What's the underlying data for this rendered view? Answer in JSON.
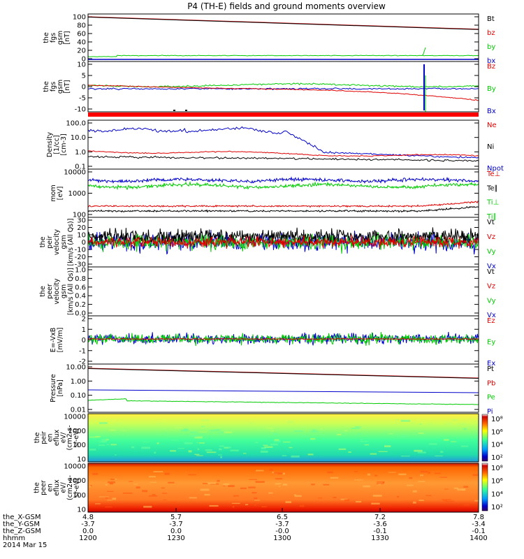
{
  "title": "P4 (TH-E) fields and ground moments overview",
  "colors": {
    "black": "#000000",
    "red": "#e00000",
    "green": "#00cc00",
    "blue": "#0000cc"
  },
  "panels": [
    {
      "ylabel": [
        "the",
        "fgs",
        "gsm",
        "[nT]"
      ],
      "ticks": [
        "100",
        "80",
        "60",
        "40",
        "20",
        "0"
      ],
      "legend": [
        {
          "text": "Bt",
          "color": "#000000"
        },
        {
          "text": "bz",
          "color": "#e00000"
        },
        {
          "text": "by",
          "color": "#00cc00"
        },
        {
          "text": "bx",
          "color": "#0000cc"
        }
      ]
    },
    {
      "ylabel": [
        "the",
        "fgs",
        "gsm",
        "[nT]"
      ],
      "ticks": [
        "10",
        "5",
        "0",
        "-5",
        "-10"
      ],
      "legend": [
        {
          "text": "Bz",
          "color": "#e00000"
        },
        {
          "text": "By",
          "color": "#00cc00"
        },
        {
          "text": "Bx",
          "color": "#0000cc"
        }
      ]
    },
    {
      "ylabel": [
        "Density",
        "[1/cc]",
        "[cm-3]"
      ],
      "ticks": [
        "100.0",
        "10.0",
        "1.0",
        "0.1"
      ],
      "legend": [
        {
          "text": "Ne",
          "color": "#e00000"
        },
        {
          "text": "Ni",
          "color": "#000000"
        },
        {
          "text": "Npot",
          "color": "#0000cc"
        }
      ]
    },
    {
      "ylabel": [
        "mom",
        "[eV]"
      ],
      "ticks": [
        "10000",
        "1000",
        "100"
      ],
      "legend": [
        {
          "text": "Te⊥",
          "color": "#e00000"
        },
        {
          "text": "Te∥",
          "color": "#000000"
        },
        {
          "text": "Ti⊥",
          "color": "#00cc00"
        },
        {
          "text": "Ti∥",
          "color": "#00cc00"
        }
      ]
    },
    {
      "ylabel": [
        "the",
        "peir",
        "velocity",
        "gsm",
        "[km/s (All Qs)]"
      ],
      "ticks": [
        "30",
        "20",
        "10",
        "0",
        "-10",
        "-20",
        "-30"
      ],
      "legend": [
        {
          "text": "Vt",
          "color": "#000000"
        },
        {
          "text": "Vz",
          "color": "#e00000"
        },
        {
          "text": "Vy",
          "color": "#00cc00"
        },
        {
          "text": "Vx",
          "color": "#0000cc"
        }
      ]
    },
    {
      "ylabel": [
        "the",
        "peer",
        "velocity",
        "gsm",
        "[km/s (All Qs)]"
      ],
      "ticks": [
        "1.0",
        "0.8",
        "0.6",
        "0.4",
        "0.2",
        "0.0"
      ],
      "legend": [
        {
          "text": "Vt",
          "color": "#000000"
        },
        {
          "text": "Vz",
          "color": "#e00000"
        },
        {
          "text": "Vy",
          "color": "#00cc00"
        },
        {
          "text": "Vx",
          "color": "#0000cc"
        }
      ]
    },
    {
      "ylabel": [
        "E=-VxB",
        "[mV/m]"
      ],
      "ticks": [
        "2",
        "1",
        "0",
        "-1",
        "-2"
      ],
      "legend": [
        {
          "text": "Ez",
          "color": "#e00000"
        },
        {
          "text": "Ey",
          "color": "#00cc00"
        },
        {
          "text": "Ex",
          "color": "#0000cc"
        }
      ]
    },
    {
      "ylabel": [
        "Pressure",
        "[nPa]"
      ],
      "ticks": [
        "10.00",
        "1.00",
        "0.10",
        "0.01"
      ],
      "legend": [
        {
          "text": "Pt",
          "color": "#000000"
        },
        {
          "text": "Pb",
          "color": "#e00000"
        },
        {
          "text": "Pe",
          "color": "#00cc00"
        },
        {
          "text": "Pi",
          "color": "#0000cc"
        }
      ]
    },
    {
      "ylabel": [
        "the",
        "peir",
        "en",
        "eflux",
        "eV/",
        "(cm2-s-",
        "sr-eV)"
      ],
      "ticks": [
        "10000",
        "1000",
        "100",
        "10"
      ],
      "colorbar": [
        "10⁸",
        "10⁶",
        "10⁴",
        "10²"
      ]
    },
    {
      "ylabel": [
        "the",
        "peer",
        "en",
        "eflux",
        "eV/",
        "(cm2-s-",
        "sr-eV)"
      ],
      "ticks": [
        "10000",
        "1000",
        "100",
        "10"
      ],
      "colorbar": [
        "10⁸",
        "10⁶",
        "10⁴",
        "10²"
      ]
    }
  ],
  "xaxis": {
    "rows": [
      {
        "label": "the_X-GSM",
        "values": [
          "4.8",
          "5.7",
          "6.5",
          "7.2",
          "7.8"
        ]
      },
      {
        "label": "the_Y-GSM",
        "values": [
          "-3.7",
          "-3.7",
          "-3.7",
          "-3.6",
          "-3.4"
        ]
      },
      {
        "label": "the_Z-GSM",
        "values": [
          "0.0",
          "0.0",
          "-0.0",
          "-0.1",
          "-0.1"
        ]
      },
      {
        "label": "hhmm",
        "values": [
          "1200",
          "1230",
          "1300",
          "1330",
          "1400"
        ]
      }
    ],
    "date": "2014 Mar 15"
  },
  "chart_data": {
    "type": "line",
    "title": "P4 (TH-E) fields and ground moments overview",
    "x": [
      "1200",
      "1230",
      "1300",
      "1330",
      "1400"
    ],
    "xlabel": "hhmm",
    "date": "2014 Mar 15",
    "panels": [
      {
        "name": "the fgs gsm [nT]",
        "ylim": [
          0,
          100
        ],
        "series": [
          {
            "name": "Bt",
            "values": [
              100,
              91,
              80,
              70,
              60
            ]
          },
          {
            "name": "bz",
            "values": [
              100,
              91,
              80,
              70,
              60
            ]
          },
          {
            "name": "by",
            "values": [
              0,
              2,
              2,
              2,
              2
            ]
          },
          {
            "name": "bx",
            "values": [
              -1,
              -1,
              -1,
              -1,
              -1
            ]
          }
        ]
      },
      {
        "name": "the fgs gsm [nT]",
        "ylim": [
          -10,
          10
        ],
        "series": [
          {
            "name": "Bz",
            "values": [
              0,
              0,
              -3,
              -5,
              -9
            ]
          },
          {
            "name": "By",
            "values": [
              0,
              0,
              -1,
              -1,
              0
            ]
          },
          {
            "name": "Bx",
            "values": [
              -1,
              -1,
              -1,
              -1,
              -1
            ]
          }
        ]
      },
      {
        "name": "Density [1/cc]",
        "log": true,
        "ylim": [
          0.1,
          100
        ],
        "series": [
          {
            "name": "Ne",
            "values": [
              1.5,
              1.5,
              1.2,
              1.0,
              0.6
            ]
          },
          {
            "name": "Ni",
            "values": [
              0.5,
              0.5,
              0.5,
              0.5,
              0.4
            ]
          },
          {
            "name": "Npot",
            "values": [
              25,
              20,
              2,
              1,
              0.7
            ]
          }
        ]
      },
      {
        "name": "mom [eV]",
        "log": true,
        "ylim": [
          100,
          10000
        ],
        "series": [
          {
            "name": "Te⊥",
            "values": [
              250,
              260,
              250,
              250,
              400
            ]
          },
          {
            "name": "Te∥",
            "values": [
              180,
              190,
              180,
              180,
              300
            ]
          },
          {
            "name": "Ti⊥",
            "values": [
              4000,
              4500,
              4000,
              4000,
              4000
            ]
          },
          {
            "name": "Ti∥",
            "values": [
              2500,
              3000,
              2800,
              2800,
              3000
            ]
          }
        ]
      },
      {
        "name": "the peir velocity gsm [km/s (All Qs)]",
        "ylim": [
          -30,
          30
        ],
        "series": [
          {
            "name": "Vt",
            "values": [
              8,
              10,
              9,
              10,
              9
            ]
          },
          {
            "name": "Vz",
            "values": [
              0,
              0,
              0,
              0,
              0
            ]
          },
          {
            "name": "Vy",
            "values": [
              0,
              0,
              0,
              0,
              0
            ]
          },
          {
            "name": "Vx",
            "values": [
              0,
              0,
              0,
              0,
              0
            ]
          }
        ]
      },
      {
        "name": "E=-VxB [mV/m]",
        "ylim": [
          -2,
          2
        ],
        "series": [
          {
            "name": "Ez",
            "values": [
              0,
              0,
              0,
              0,
              0
            ]
          },
          {
            "name": "Ey",
            "values": [
              0,
              0,
              0,
              0,
              0
            ]
          },
          {
            "name": "Ex",
            "values": [
              0,
              0,
              0,
              0,
              0
            ]
          }
        ]
      },
      {
        "name": "Pressure [nPa]",
        "log": true,
        "ylim": [
          0.01,
          10
        ],
        "series": [
          {
            "name": "Pt",
            "values": [
              5,
              4,
              3,
              2.4,
              1.8
            ]
          },
          {
            "name": "Pb",
            "values": [
              5,
              4,
              3,
              2.4,
              1.8
            ]
          },
          {
            "name": "Pe",
            "values": [
              0.25,
              0.23,
              0.22,
              0.21,
              0.2
            ]
          },
          {
            "name": "Pi",
            "values": [
              0.05,
              0.04,
              0.035,
              0.035,
              0.03
            ]
          }
        ]
      }
    ]
  }
}
